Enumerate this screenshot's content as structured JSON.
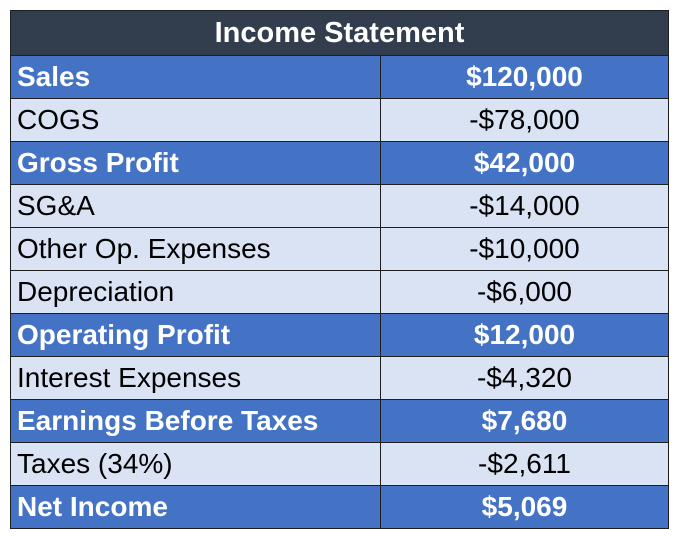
{
  "statement": {
    "title": "Income Statement",
    "rows": [
      {
        "label": "Sales",
        "value": "$120,000",
        "style": "highlight"
      },
      {
        "label": "COGS",
        "value": "-$78,000",
        "style": "plain"
      },
      {
        "label": "Gross Profit",
        "value": "$42,000",
        "style": "highlight"
      },
      {
        "label": "SG&A",
        "value": "-$14,000",
        "style": "plain"
      },
      {
        "label": "Other Op. Expenses",
        "value": "-$10,000",
        "style": "plain"
      },
      {
        "label": "Depreciation",
        "value": "-$6,000",
        "style": "plain"
      },
      {
        "label": "Operating Profit",
        "value": "$12,000",
        "style": "highlight"
      },
      {
        "label": "Interest Expenses",
        "value": "-$4,320",
        "style": "plain"
      },
      {
        "label": "Earnings Before Taxes",
        "value": "$7,680",
        "style": "highlight"
      },
      {
        "label": "Taxes (34%)",
        "value": "-$2,611",
        "style": "plain"
      },
      {
        "label": "Net Income",
        "value": "$5,069",
        "style": "highlight"
      }
    ]
  },
  "colors": {
    "title_background": "#323d4e",
    "highlight_background": "#4472c4",
    "plain_background": "#dae3f3",
    "border": "#1f1f1f"
  }
}
